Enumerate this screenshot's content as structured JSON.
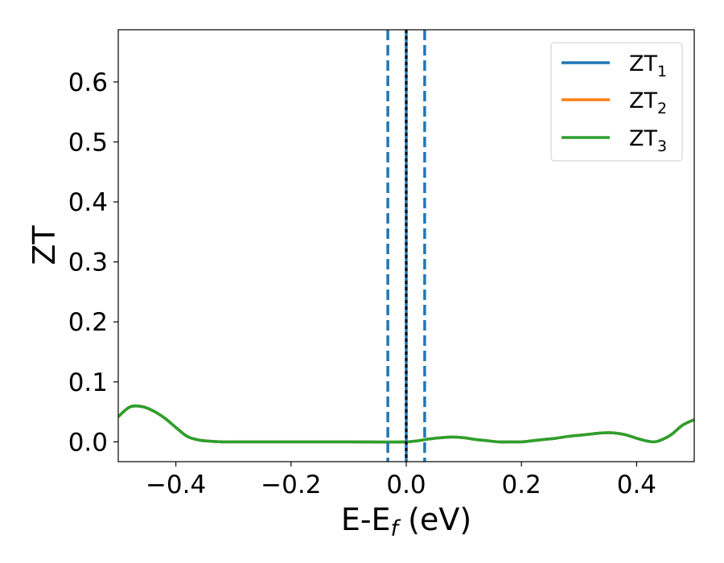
{
  "chart_data": {
    "type": "line",
    "title": "",
    "xlabel": "E-E",
    "xlabel_sub": "f",
    "xlabel_unit": " (eV)",
    "ylabel": "ZT",
    "xlim": [
      -0.5,
      0.5
    ],
    "ylim": [
      -0.033,
      0.687
    ],
    "grid": false,
    "legend_position": "top-right",
    "x_ticks": [
      {
        "value": -0.4,
        "label": "−0.4"
      },
      {
        "value": -0.2,
        "label": "−0.2"
      },
      {
        "value": 0.0,
        "label": "0.0"
      },
      {
        "value": 0.2,
        "label": "0.2"
      },
      {
        "value": 0.4,
        "label": "0.4"
      }
    ],
    "y_ticks": [
      {
        "value": 0.0,
        "label": "0.0"
      },
      {
        "value": 0.1,
        "label": "0.1"
      },
      {
        "value": 0.2,
        "label": "0.2"
      },
      {
        "value": 0.3,
        "label": "0.3"
      },
      {
        "value": 0.4,
        "label": "0.4"
      },
      {
        "value": 0.5,
        "label": "0.5"
      },
      {
        "value": 0.6,
        "label": "0.6"
      }
    ],
    "series": [
      {
        "name": "ZT",
        "name_sub": "1",
        "color": "#1f77b4",
        "x": [
          -0.5,
          -0.48,
          -0.46,
          -0.44,
          -0.42,
          -0.4,
          -0.38,
          -0.36,
          -0.34,
          -0.32,
          -0.3,
          -0.2,
          -0.1,
          0.0,
          0.04,
          0.06,
          0.08,
          0.1,
          0.12,
          0.14,
          0.16,
          0.18,
          0.2,
          0.22,
          0.24,
          0.26,
          0.28,
          0.3,
          0.32,
          0.34,
          0.36,
          0.38,
          0.4,
          0.42,
          0.43,
          0.44,
          0.46,
          0.48,
          0.5
        ],
        "y": [
          0.042,
          0.058,
          0.059,
          0.052,
          0.04,
          0.024,
          0.009,
          0.003,
          0.001,
          0.0,
          0.0,
          0.0,
          0.0,
          0.0,
          0.005,
          0.007,
          0.008,
          0.007,
          0.004,
          0.002,
          0.0,
          0.0,
          0.0,
          0.002,
          0.004,
          0.006,
          0.009,
          0.011,
          0.013,
          0.015,
          0.015,
          0.012,
          0.006,
          0.001,
          0.0,
          0.002,
          0.012,
          0.028,
          0.037
        ]
      },
      {
        "name": "ZT",
        "name_sub": "2",
        "color": "#ff7f0e",
        "x": [
          -0.5,
          -0.48,
          -0.46,
          -0.44,
          -0.42,
          -0.4,
          -0.38,
          -0.36,
          -0.34,
          -0.32,
          -0.3,
          -0.2,
          -0.1,
          0.0,
          0.04,
          0.06,
          0.08,
          0.1,
          0.12,
          0.14,
          0.16,
          0.18,
          0.2,
          0.22,
          0.24,
          0.26,
          0.28,
          0.3,
          0.32,
          0.34,
          0.36,
          0.38,
          0.4,
          0.42,
          0.43,
          0.44,
          0.46,
          0.48,
          0.5
        ],
        "y": [
          0.042,
          0.058,
          0.059,
          0.052,
          0.04,
          0.024,
          0.009,
          0.003,
          0.001,
          0.0,
          0.0,
          0.0,
          0.0,
          0.0,
          0.005,
          0.007,
          0.008,
          0.007,
          0.004,
          0.002,
          0.0,
          0.0,
          0.0,
          0.002,
          0.004,
          0.006,
          0.009,
          0.011,
          0.013,
          0.015,
          0.015,
          0.012,
          0.006,
          0.001,
          0.0,
          0.002,
          0.012,
          0.028,
          0.037
        ]
      },
      {
        "name": "ZT",
        "name_sub": "3",
        "color": "#2ca02c",
        "x": [
          -0.5,
          -0.48,
          -0.46,
          -0.44,
          -0.42,
          -0.4,
          -0.38,
          -0.36,
          -0.34,
          -0.32,
          -0.3,
          -0.2,
          -0.1,
          0.0,
          0.04,
          0.06,
          0.08,
          0.1,
          0.12,
          0.14,
          0.16,
          0.18,
          0.2,
          0.22,
          0.24,
          0.26,
          0.28,
          0.3,
          0.32,
          0.34,
          0.36,
          0.38,
          0.4,
          0.42,
          0.43,
          0.44,
          0.46,
          0.48,
          0.5
        ],
        "y": [
          0.042,
          0.058,
          0.059,
          0.052,
          0.04,
          0.024,
          0.009,
          0.003,
          0.001,
          0.0,
          0.0,
          0.0,
          0.0,
          0.0,
          0.005,
          0.007,
          0.008,
          0.007,
          0.004,
          0.002,
          0.0,
          0.0,
          0.0,
          0.002,
          0.004,
          0.006,
          0.009,
          0.011,
          0.013,
          0.015,
          0.015,
          0.012,
          0.006,
          0.001,
          0.0,
          0.002,
          0.012,
          0.028,
          0.037
        ]
      }
    ],
    "vertical_lines": [
      {
        "x": -0.032,
        "style": "dashed",
        "color": "#1f77b4"
      },
      {
        "x": 0.0,
        "style": "solid",
        "color": "#1f77b4"
      },
      {
        "x": 0.0,
        "style": "dotted",
        "color": "#000000"
      },
      {
        "x": 0.032,
        "style": "dashed",
        "color": "#1f77b4"
      }
    ]
  }
}
